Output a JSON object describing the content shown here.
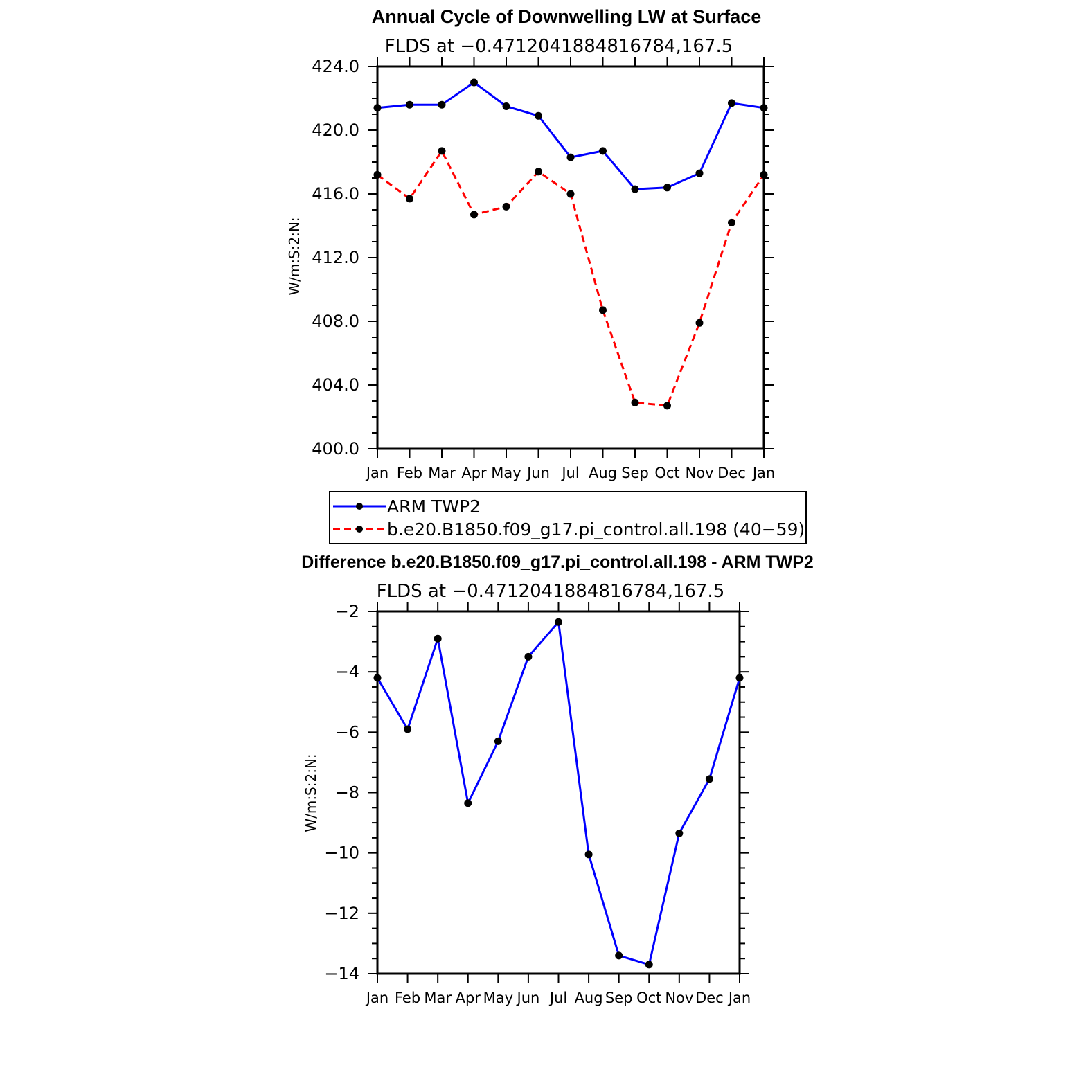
{
  "chart_data": [
    {
      "type": "line",
      "title": "Annual Cycle of Downwelling LW at Surface",
      "subtitle": "FLDS at −0.4712041884816784,167.5",
      "ylabel": "W/m:S:2:N:",
      "ylim": [
        400,
        424
      ],
      "yticks": [
        "400.0",
        "404.0",
        "408.0",
        "412.0",
        "416.0",
        "420.0",
        "424.0"
      ],
      "categories": [
        "Jan",
        "Feb",
        "Mar",
        "Apr",
        "May",
        "Jun",
        "Jul",
        "Aug",
        "Sep",
        "Oct",
        "Nov",
        "Dec",
        "Jan"
      ],
      "series": [
        {
          "name": "ARM TWP2",
          "color": "#0000ff",
          "dash": "solid",
          "values": [
            421.4,
            421.6,
            421.6,
            423.0,
            421.5,
            420.9,
            418.3,
            418.7,
            416.3,
            416.4,
            417.3,
            421.7,
            421.4
          ]
        },
        {
          "name": "b.e20.B1850.f09_g17.pi_control.all.198 (40−59)",
          "color": "#ff0000",
          "dash": "dashed",
          "values": [
            417.2,
            415.7,
            418.7,
            414.7,
            415.2,
            417.4,
            416.0,
            408.7,
            402.9,
            402.7,
            407.9,
            414.2,
            417.2
          ]
        }
      ],
      "legend": "bottom"
    },
    {
      "type": "line",
      "title": "Difference b.e20.B1850.f09_g17.pi_control.all.198 - ARM TWP2",
      "subtitle": "FLDS at −0.4712041884816784,167.5",
      "ylabel": "W/m:S:2:N:",
      "ylim": [
        -14,
        -2
      ],
      "yticks": [
        "−14",
        "−12",
        "−10",
        "−8",
        "−6",
        "−4",
        "−2"
      ],
      "categories": [
        "Jan",
        "Feb",
        "Mar",
        "Apr",
        "May",
        "Jun",
        "Jul",
        "Aug",
        "Sep",
        "Oct",
        "Nov",
        "Dec",
        "Jan"
      ],
      "series": [
        {
          "color": "#0000ff",
          "dash": "solid",
          "values": [
            -4.2,
            -5.9,
            -2.9,
            -8.35,
            -6.3,
            -3.5,
            -2.35,
            -10.05,
            -13.4,
            -13.7,
            -9.35,
            -7.55,
            -4.2
          ]
        }
      ]
    }
  ]
}
